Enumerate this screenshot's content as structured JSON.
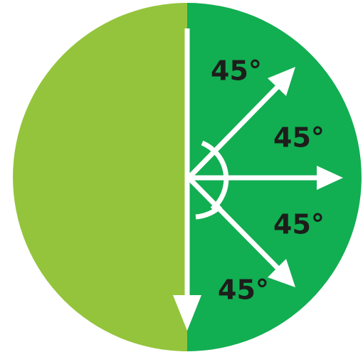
{
  "angle_labels": [
    "45°",
    "45°",
    "45°",
    "45°"
  ]
}
